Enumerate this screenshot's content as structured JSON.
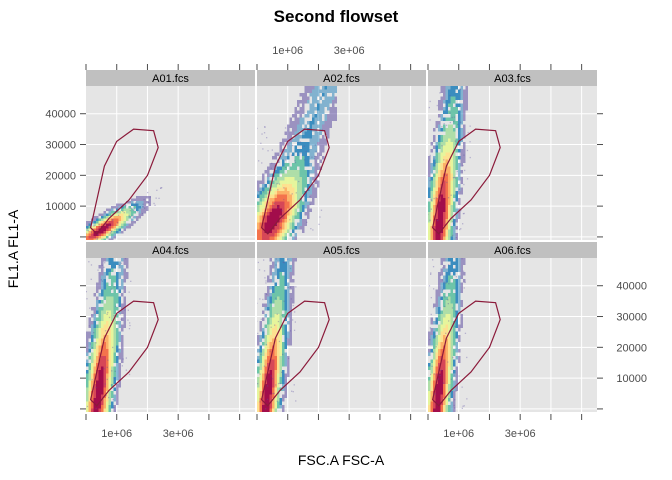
{
  "chart_data": {
    "type": "heatmap",
    "subtype": "2d-density-with-polygon-gate",
    "title": "Second flowset",
    "xlabel": "FSC.A FSC-A",
    "ylabel": "FL1.A FL1-A",
    "xlim": [
      0,
      5500000
    ],
    "ylim": [
      -1000,
      49000
    ],
    "x_ticks": [
      0,
      1000000,
      2000000,
      3000000,
      4000000,
      5000000
    ],
    "x_tick_labels": [
      "1e+06",
      "3e+06"
    ],
    "x_tick_label_values": [
      1000000,
      3000000
    ],
    "y_ticks": [
      0,
      10000,
      20000,
      30000,
      40000
    ],
    "y_tick_labels": [
      "10000",
      "20000",
      "30000",
      "40000"
    ],
    "y_tick_label_values": [
      10000,
      20000,
      30000,
      40000
    ],
    "layout": {
      "columns": 3,
      "rows": 2
    },
    "gate": {
      "polygon": [
        [
          150000,
          3000
        ],
        [
          600000,
          23000
        ],
        [
          1000000,
          31000
        ],
        [
          1550000,
          35000
        ],
        [
          2200000,
          34500
        ],
        [
          2350000,
          29000
        ],
        [
          2000000,
          20000
        ],
        [
          1400000,
          12000
        ],
        [
          750000,
          6000
        ],
        [
          350000,
          1000
        ]
      ],
      "color": "#8b1a3a"
    },
    "colors": {
      "panel_background": "#e5e5e5",
      "grid": "#ffffff",
      "strip": "#c0c0c0",
      "density_palette": [
        "#5e4fa2",
        "#3288bd",
        "#66c2a5",
        "#abdda4",
        "#e6f598",
        "#fee08b",
        "#fdae61",
        "#f46d43",
        "#d53e4f",
        "#9e0142"
      ]
    },
    "panels": [
      {
        "name": "A01.fcs",
        "shape": "compact",
        "x0": 450000,
        "y0": 2500,
        "slope": 0.006,
        "x_spread": 650000,
        "y_spread": 2200,
        "x_max": 3200000,
        "y_max": 14000
      },
      {
        "name": "A02.fcs",
        "shape": "wide",
        "x0": 480000,
        "y0": 6000,
        "slope": 0.025,
        "x_spread": 450000,
        "y_spread": 9000,
        "x_max": 2600000,
        "y_max": 36000
      },
      {
        "name": "A03.fcs",
        "shape": "column",
        "x0": 350000,
        "y0": 6000,
        "slope": 0.09,
        "x_spread": 250000,
        "y_spread": 17000,
        "x_max": 1600000,
        "y_max": 49000
      },
      {
        "name": "A04.fcs",
        "shape": "column",
        "x0": 380000,
        "y0": 6000,
        "slope": 0.085,
        "x_spread": 260000,
        "y_spread": 17000,
        "x_max": 1700000,
        "y_max": 49000
      },
      {
        "name": "A05.fcs",
        "shape": "column",
        "x0": 300000,
        "y0": 5000,
        "slope": 0.085,
        "x_spread": 240000,
        "y_spread": 17000,
        "x_max": 1500000,
        "y_max": 49000
      },
      {
        "name": "A06.fcs",
        "shape": "column",
        "x0": 300000,
        "y0": 5000,
        "slope": 0.09,
        "x_spread": 230000,
        "y_spread": 17000,
        "x_max": 1500000,
        "y_max": 49000
      }
    ]
  }
}
